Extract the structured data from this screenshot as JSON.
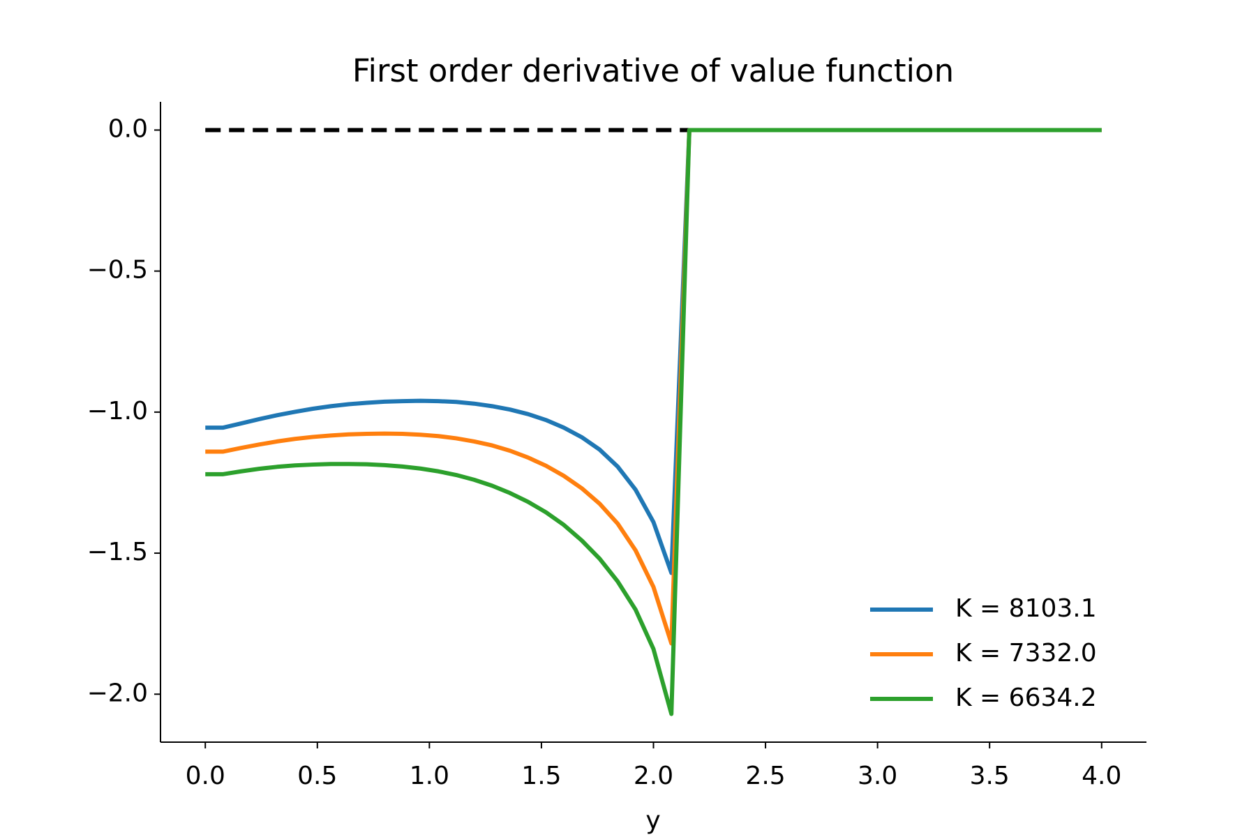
{
  "chart_data": {
    "type": "line",
    "title": "First order derivative of value function",
    "x_label": "y",
    "x": [
      0,
      0.08,
      0.16,
      0.24,
      0.32,
      0.4,
      0.48,
      0.56,
      0.64,
      0.72,
      0.8,
      0.88,
      0.96,
      1.04,
      1.12,
      1.2,
      1.28,
      1.36,
      1.44,
      1.52,
      1.6,
      1.68,
      1.76,
      1.84,
      1.92,
      2.0,
      2.08,
      2.16,
      2.24,
      2.32,
      2.4,
      2.48,
      2.56,
      2.64,
      2.72,
      2.8,
      2.88,
      2.96,
      3.04,
      3.12,
      3.2,
      3.28,
      3.36,
      3.44,
      3.52,
      3.6,
      3.68,
      3.76,
      3.84,
      3.92,
      4.0
    ],
    "series": [
      {
        "name": "K = 8103.1",
        "color": "#1f77b4",
        "values": [
          -1.055,
          -1.055,
          -1.04,
          -1.025,
          -1.011,
          -0.999,
          -0.988,
          -0.979,
          -0.972,
          -0.967,
          -0.963,
          -0.961,
          -0.96,
          -0.961,
          -0.964,
          -0.97,
          -0.979,
          -0.991,
          -1.007,
          -1.028,
          -1.055,
          -1.089,
          -1.133,
          -1.193,
          -1.275,
          -1.39,
          -1.57,
          0,
          0,
          0,
          0,
          0,
          0,
          0,
          0,
          0,
          0,
          0,
          0,
          0,
          0,
          0,
          0,
          0,
          0,
          0,
          0,
          0,
          0,
          0,
          0
        ]
      },
      {
        "name": "K = 7332.0",
        "color": "#ff7f0e",
        "values": [
          -1.14,
          -1.14,
          -1.127,
          -1.115,
          -1.104,
          -1.095,
          -1.088,
          -1.083,
          -1.079,
          -1.077,
          -1.076,
          -1.077,
          -1.08,
          -1.085,
          -1.093,
          -1.104,
          -1.118,
          -1.137,
          -1.161,
          -1.19,
          -1.226,
          -1.27,
          -1.325,
          -1.395,
          -1.49,
          -1.62,
          -1.82,
          0,
          0,
          0,
          0,
          0,
          0,
          0,
          0,
          0,
          0,
          0,
          0,
          0,
          0,
          0,
          0,
          0,
          0,
          0,
          0,
          0,
          0,
          0,
          0
        ]
      },
      {
        "name": "K = 6634.2",
        "color": "#2ca02c",
        "values": [
          -1.22,
          -1.22,
          -1.21,
          -1.201,
          -1.194,
          -1.189,
          -1.186,
          -1.184,
          -1.184,
          -1.185,
          -1.188,
          -1.193,
          -1.2,
          -1.21,
          -1.223,
          -1.24,
          -1.261,
          -1.287,
          -1.318,
          -1.355,
          -1.4,
          -1.455,
          -1.52,
          -1.6,
          -1.7,
          -1.84,
          -2.07,
          0,
          0,
          0,
          0,
          0,
          0,
          0,
          0,
          0,
          0,
          0,
          0,
          0,
          0,
          0,
          0,
          0,
          0,
          0,
          0,
          0,
          0,
          0,
          0
        ]
      }
    ],
    "reference_line": {
      "x": [
        0,
        2.16
      ],
      "values": [
        0,
        0
      ],
      "color": "#000000",
      "dashed": true
    },
    "xlim": [
      -0.2,
      4.2
    ],
    "ylim": [
      -2.17,
      0.1
    ],
    "xticks": [
      {
        "value": 0,
        "label": "0.0"
      },
      0.5,
      {
        "value": 1,
        "label": "1.0"
      },
      1.5,
      {
        "value": 2,
        "label": "2.0"
      },
      2.5,
      {
        "value": 3,
        "label": "3.0"
      },
      3.5,
      {
        "value": 4,
        "label": "4.0"
      }
    ],
    "yticks": [
      {
        "value": 0,
        "label": "0.0"
      },
      {
        "value": -0.5,
        "label": "−0.5"
      },
      {
        "value": -1,
        "label": "−1.0"
      },
      {
        "value": -1.5,
        "label": "−1.5"
      },
      {
        "value": -2,
        "label": "−2.0"
      }
    ],
    "legend": "lower right",
    "grid": false
  }
}
